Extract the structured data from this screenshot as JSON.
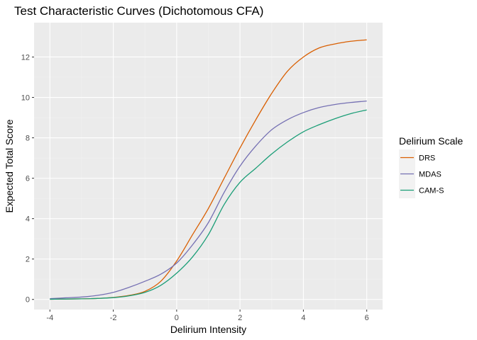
{
  "chart_data": {
    "type": "line",
    "title": "Test Characteristic Curves (Dichotomous CFA)",
    "xlabel": "Delirium Intensity",
    "ylabel": "Expected Total Score",
    "xlim": [
      -4.5,
      6.5
    ],
    "ylim": [
      -0.5,
      13.7
    ],
    "x_ticks": [
      -4,
      -2,
      0,
      2,
      4,
      6
    ],
    "y_ticks": [
      0,
      2,
      4,
      6,
      8,
      10,
      12
    ],
    "grid": true,
    "legend": {
      "title": "Delirium Scale",
      "position": "right"
    },
    "x": [
      -4,
      -3.5,
      -3,
      -2.5,
      -2,
      -1.5,
      -1,
      -0.5,
      0,
      0.5,
      1,
      1.5,
      2,
      2.5,
      3,
      3.5,
      4,
      4.5,
      5,
      5.5,
      6
    ],
    "series": [
      {
        "name": "DRS",
        "color": "#d95f02",
        "values": [
          0.01,
          0.02,
          0.03,
          0.05,
          0.1,
          0.2,
          0.4,
          0.9,
          1.9,
          3.2,
          4.5,
          6.0,
          7.5,
          8.9,
          10.2,
          11.3,
          12.0,
          12.45,
          12.65,
          12.78,
          12.85
        ]
      },
      {
        "name": "MDAS",
        "color": "#7570b3",
        "values": [
          0.04,
          0.08,
          0.12,
          0.2,
          0.35,
          0.6,
          0.9,
          1.25,
          1.8,
          2.7,
          3.8,
          5.3,
          6.6,
          7.6,
          8.4,
          8.9,
          9.25,
          9.5,
          9.65,
          9.75,
          9.82
        ]
      },
      {
        "name": "CAM-S",
        "color": "#1b9e77",
        "values": [
          0.01,
          0.02,
          0.03,
          0.05,
          0.09,
          0.18,
          0.35,
          0.7,
          1.3,
          2.1,
          3.2,
          4.7,
          5.8,
          6.5,
          7.2,
          7.8,
          8.3,
          8.65,
          8.95,
          9.2,
          9.38
        ]
      }
    ]
  }
}
